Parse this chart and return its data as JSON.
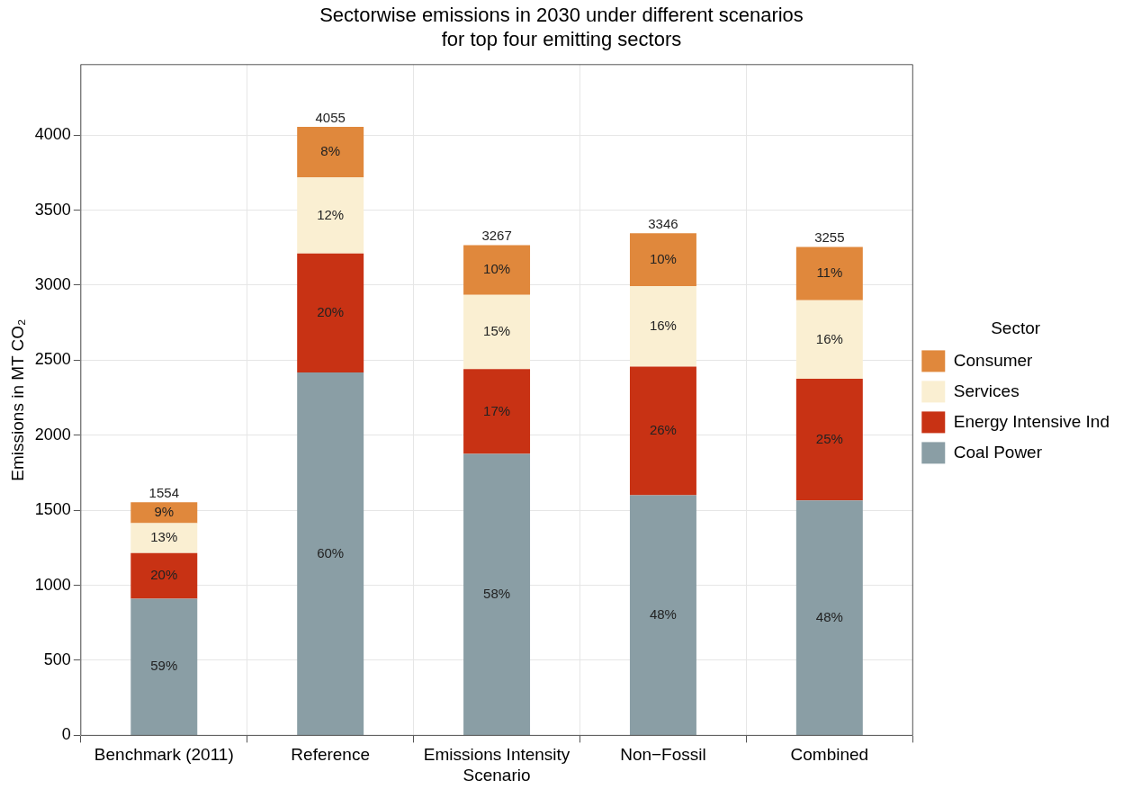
{
  "chart_data": {
    "type": "bar",
    "title": "Sectorwise emissions in 2030 under different scenarios\nfor top four emitting sectors",
    "ylabel": "Emissions in MT CO₂",
    "legend_title": "Sector",
    "categories": [
      "Benchmark (2011)",
      "Reference",
      "Emissions Intensity Scenario",
      "Non−Fossil",
      "Combined"
    ],
    "stacked": true,
    "series": [
      {
        "name": "Coal Power",
        "color": "#8a9ea5",
        "values": [
          910,
          2418,
          1876,
          1600,
          1565
        ]
      },
      {
        "name": "Energy Intensive Ind",
        "color": "#c83214",
        "values": [
          305,
          793,
          565,
          858,
          811
        ]
      },
      {
        "name": "Services",
        "color": "#faefd2",
        "values": [
          199,
          507,
          494,
          536,
          524
        ]
      },
      {
        "name": "Consumer",
        "color": "#e0883c",
        "values": [
          140,
          337,
          332,
          352,
          355
        ]
      }
    ],
    "annotations": [
      "59%",
      "20%",
      "13%",
      "9%",
      "60%",
      "20%",
      "12%",
      "8%",
      "58%",
      "17%",
      "15%",
      "10%",
      "48%",
      "26%",
      "16%",
      "10%",
      "48%",
      "25%",
      "16%",
      "11%"
    ],
    "totals": [
      "1554",
      "4055",
      "3267",
      "3346",
      "3255"
    ],
    "ylim": [
      0,
      4470
    ],
    "yticks": [
      0,
      500,
      1000,
      1500,
      2000,
      2500,
      3000,
      3500,
      4000
    ],
    "grid": true,
    "legend": "right"
  }
}
